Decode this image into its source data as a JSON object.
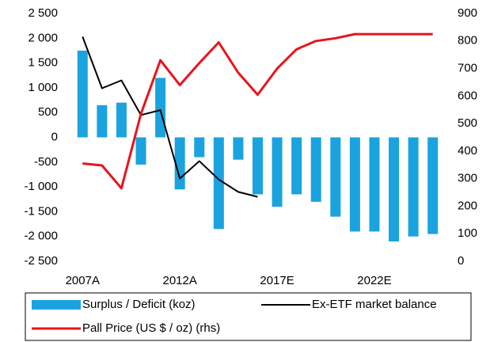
{
  "chart_data": {
    "type": "bar_line",
    "categories": [
      "2007A",
      null,
      null,
      null,
      null,
      "2012A",
      null,
      null,
      null,
      null,
      "2017E",
      null,
      null,
      null,
      null,
      "2022E",
      null,
      null,
      null
    ],
    "series": [
      {
        "name": "Surplus / Deficit (koz)",
        "type": "bar",
        "color": "#1aa3de",
        "values": [
          1750,
          650,
          700,
          -550,
          1200,
          -1050,
          -400,
          -1850,
          -450,
          -1150,
          -1400,
          -1150,
          -1300,
          -1600,
          -1900,
          -1900,
          -2100,
          -2000,
          -1950
        ]
      },
      {
        "name": "Ex-ETF market balance",
        "type": "line",
        "color": "#000000",
        "values": [
          2030,
          990,
          1150,
          450,
          550,
          -830,
          -480,
          -850,
          -1100,
          -1200,
          null,
          null,
          null,
          null,
          null,
          null,
          null,
          null,
          null
        ]
      },
      {
        "name": "Pall Price (US $ / oz) (rhs)",
        "type": "line",
        "axis": "y2",
        "color": "#e8141c",
        "values": [
          355,
          348,
          265,
          535,
          730,
          640,
          720,
          795,
          685,
          605,
          700,
          770,
          800,
          810,
          825,
          825,
          825,
          825,
          825
        ]
      }
    ],
    "ylim": [
      -2500,
      2500
    ],
    "yticks": [
      {
        "value": -2500,
        "label": "-2 500"
      },
      {
        "value": -2000,
        "label": "-2 000"
      },
      {
        "value": -1500,
        "label": "-1 500"
      },
      {
        "value": -1000,
        "label": "-1 000"
      },
      -500,
      0,
      500,
      {
        "value": 1000,
        "label": "1 000"
      },
      {
        "value": 1500,
        "label": "1 500"
      },
      {
        "value": 2000,
        "label": "2 000"
      },
      {
        "value": 2500,
        "label": "2 500"
      }
    ],
    "y2lim": [
      0,
      900
    ],
    "y2ticks": [
      0,
      100,
      200,
      300,
      400,
      500,
      600,
      700,
      800,
      900
    ],
    "grid": false
  }
}
